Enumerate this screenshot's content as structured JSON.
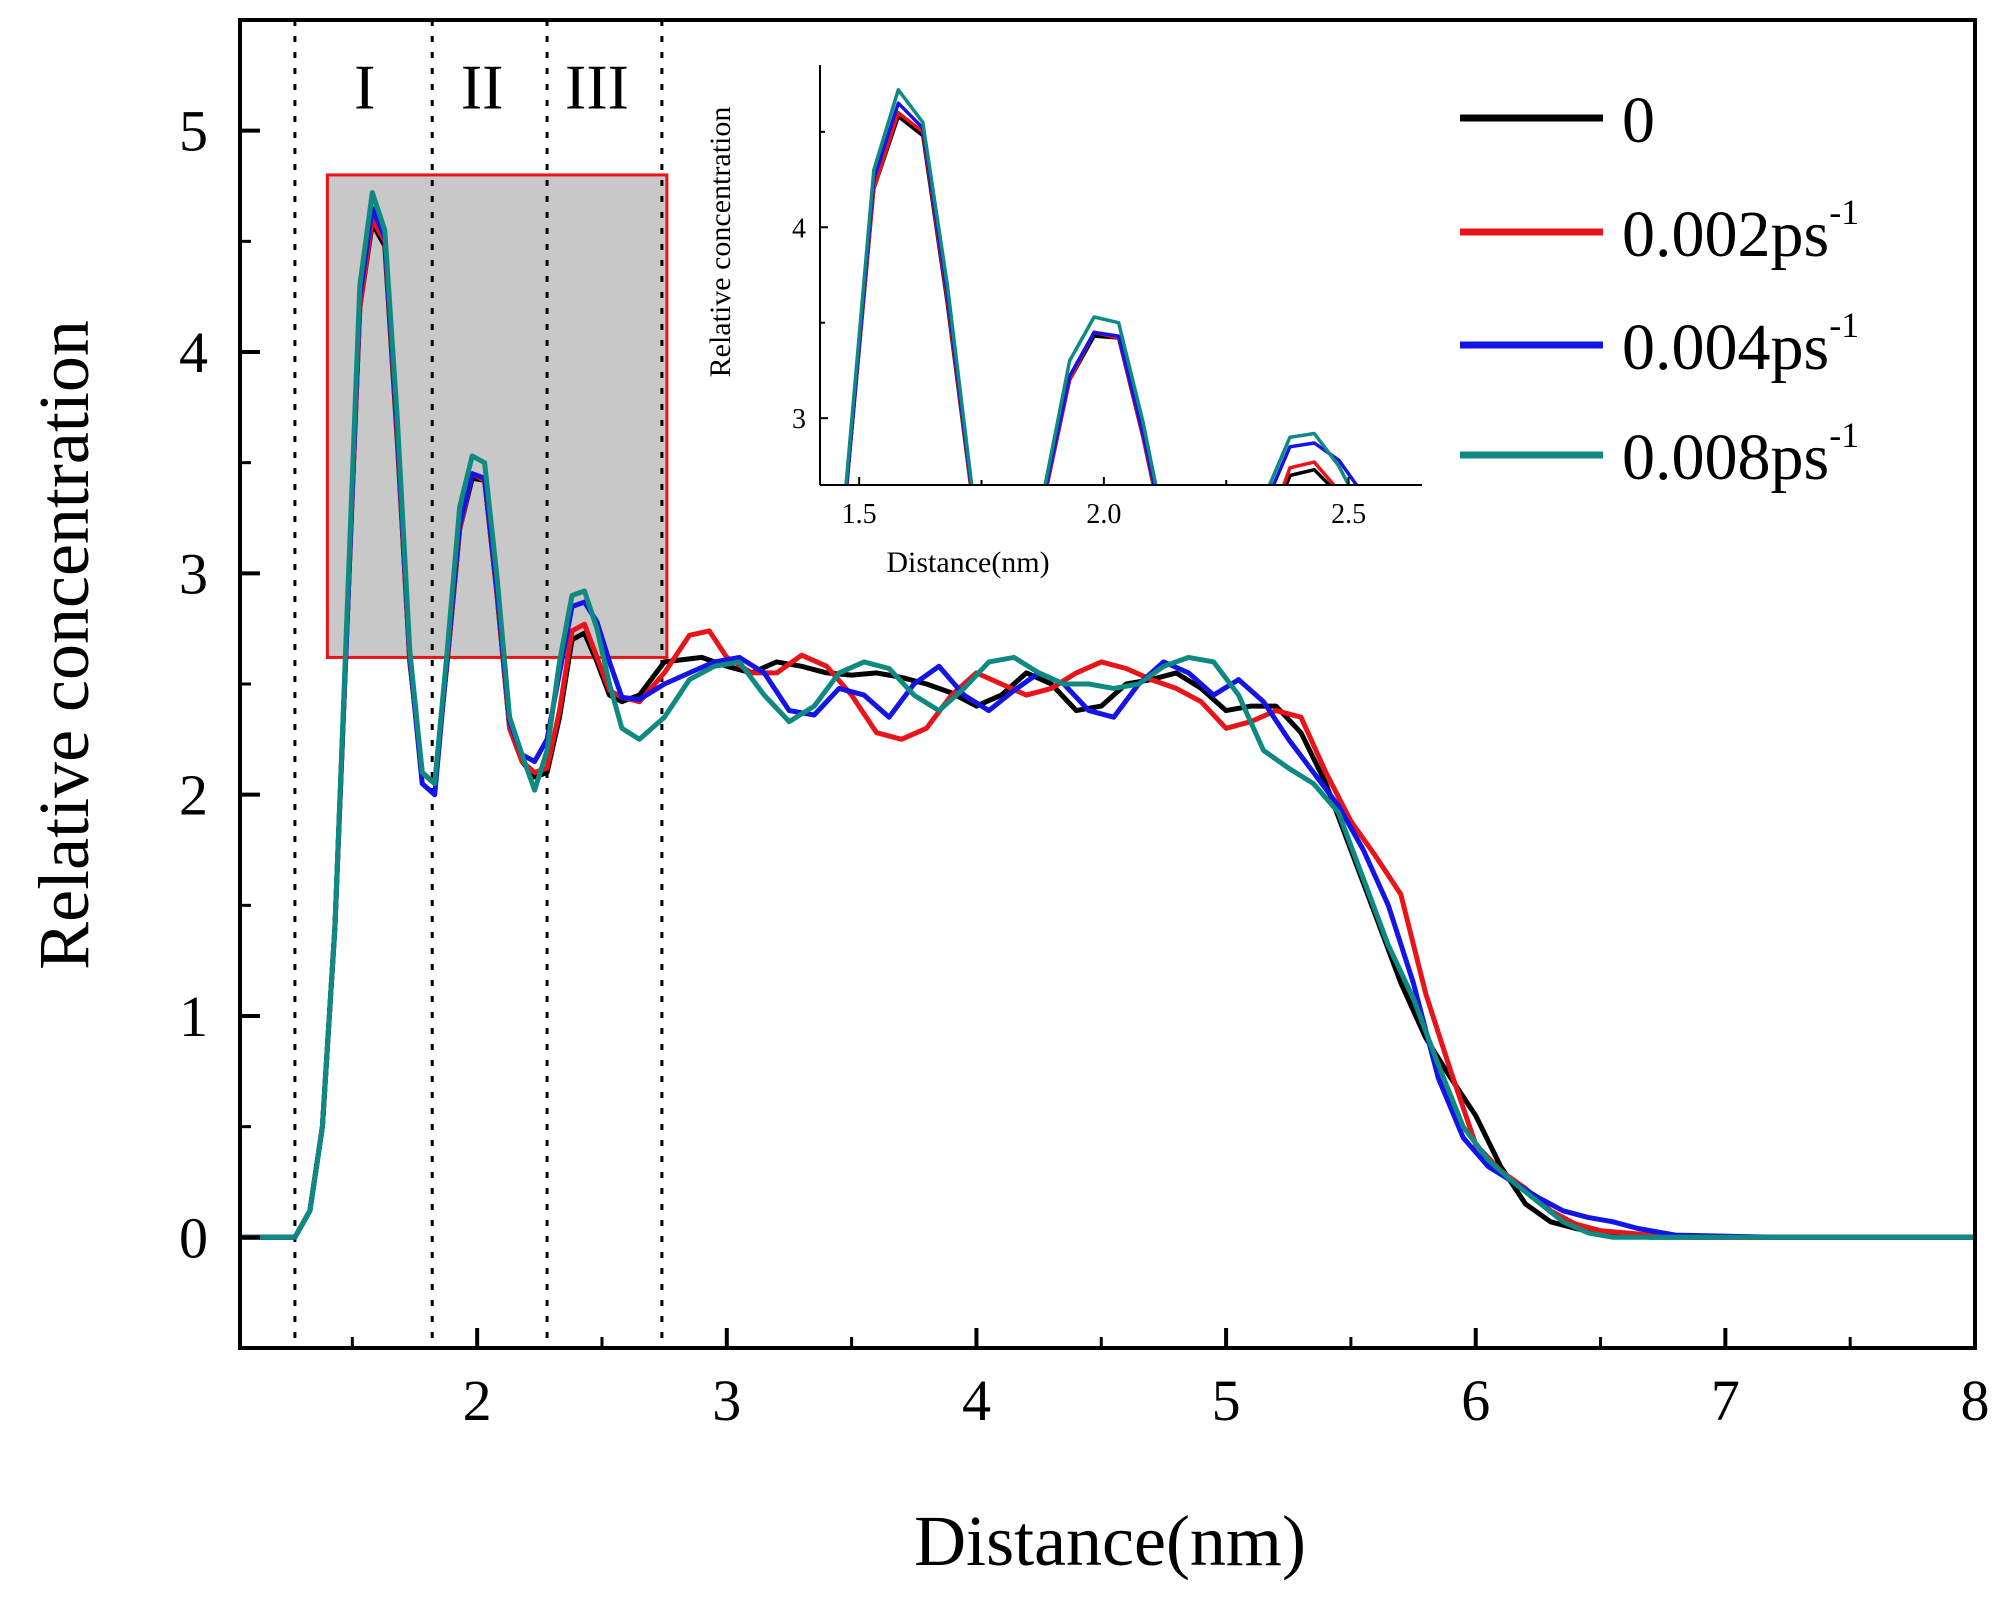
{
  "chart_data": {
    "type": "line",
    "title": "",
    "xlabel": "Distance(nm)",
    "ylabel": "Relative concentration",
    "xlim": [
      1.05,
      8
    ],
    "ylim": [
      -0.5,
      5.5
    ],
    "x_ticks": [
      "2",
      "3",
      "4",
      "5",
      "6",
      "7",
      "8"
    ],
    "y_ticks": [
      "0",
      "1",
      "2",
      "3",
      "4",
      "5"
    ],
    "grid": false,
    "legend_position": "top-right",
    "colors": {
      "s0": "#000000",
      "s1": "#e8141a",
      "s2": "#1414e6",
      "s3": "#0e8a82",
      "region": "#c8c8c8",
      "region_border": "#e8141a"
    },
    "region_dividers": [
      1.27,
      1.82,
      2.28,
      2.74
    ],
    "region_labels": [
      {
        "text": "I",
        "x": 1.55,
        "y": 5.1
      },
      {
        "text": "II",
        "x": 2.02,
        "y": 5.1
      },
      {
        "text": "III",
        "x": 2.48,
        "y": 5.1
      }
    ],
    "highlight_box": {
      "x0": 1.4,
      "x1": 2.76,
      "y0": 2.62,
      "y1": 4.8
    },
    "series": [
      {
        "name": "0",
        "color": "#000000",
        "x": [
          1.05,
          1.27,
          1.33,
          1.38,
          1.43,
          1.48,
          1.53,
          1.58,
          1.63,
          1.68,
          1.73,
          1.78,
          1.83,
          1.88,
          1.93,
          1.98,
          2.03,
          2.08,
          2.13,
          2.18,
          2.23,
          2.28,
          2.33,
          2.38,
          2.43,
          2.48,
          2.53,
          2.58,
          2.65,
          2.75,
          2.9,
          3.0,
          3.1,
          3.2,
          3.3,
          3.4,
          3.5,
          3.6,
          3.7,
          3.8,
          3.9,
          4.0,
          4.1,
          4.2,
          4.3,
          4.4,
          4.5,
          4.6,
          4.7,
          4.8,
          4.9,
          5.0,
          5.1,
          5.2,
          5.3,
          5.4,
          5.5,
          5.6,
          5.7,
          5.8,
          5.9,
          6.0,
          6.1,
          6.2,
          6.3,
          6.4,
          6.5,
          6.6,
          6.7,
          6.85,
          7.2,
          8.0
        ],
        "y": [
          0,
          0,
          0.12,
          0.5,
          1.4,
          2.8,
          4.2,
          4.58,
          4.48,
          3.6,
          2.6,
          2.1,
          2.05,
          2.6,
          3.2,
          3.43,
          3.42,
          2.9,
          2.3,
          2.15,
          2.08,
          2.1,
          2.35,
          2.7,
          2.73,
          2.6,
          2.45,
          2.42,
          2.45,
          2.6,
          2.62,
          2.58,
          2.55,
          2.6,
          2.58,
          2.55,
          2.54,
          2.55,
          2.53,
          2.5,
          2.46,
          2.4,
          2.45,
          2.55,
          2.5,
          2.38,
          2.4,
          2.5,
          2.52,
          2.55,
          2.48,
          2.38,
          2.4,
          2.4,
          2.28,
          2.05,
          1.75,
          1.45,
          1.15,
          0.9,
          0.72,
          0.55,
          0.32,
          0.15,
          0.07,
          0.04,
          0.02,
          0.01,
          0,
          0,
          0,
          0
        ]
      },
      {
        "name": "0.002ps-1",
        "color": "#e8141a",
        "x": [
          1.05,
          1.27,
          1.33,
          1.38,
          1.43,
          1.48,
          1.53,
          1.58,
          1.63,
          1.68,
          1.73,
          1.78,
          1.83,
          1.88,
          1.93,
          1.98,
          2.03,
          2.08,
          2.13,
          2.18,
          2.23,
          2.28,
          2.33,
          2.38,
          2.43,
          2.48,
          2.53,
          2.58,
          2.65,
          2.75,
          2.85,
          2.93,
          3.0,
          3.1,
          3.2,
          3.3,
          3.4,
          3.5,
          3.6,
          3.7,
          3.8,
          3.9,
          4.0,
          4.1,
          4.2,
          4.3,
          4.4,
          4.5,
          4.6,
          4.7,
          4.8,
          4.9,
          5.0,
          5.1,
          5.2,
          5.3,
          5.4,
          5.5,
          5.6,
          5.7,
          5.8,
          5.9,
          6.0,
          6.1,
          6.2,
          6.3,
          6.4,
          6.5,
          6.6,
          6.7,
          6.85,
          7.2,
          8.0
        ],
        "y": [
          0,
          0,
          0.12,
          0.5,
          1.4,
          2.8,
          4.2,
          4.6,
          4.5,
          3.62,
          2.6,
          2.1,
          2.05,
          2.6,
          3.2,
          3.45,
          3.42,
          2.9,
          2.3,
          2.15,
          2.1,
          2.12,
          2.38,
          2.74,
          2.77,
          2.62,
          2.47,
          2.44,
          2.42,
          2.55,
          2.72,
          2.74,
          2.62,
          2.55,
          2.55,
          2.63,
          2.58,
          2.45,
          2.28,
          2.25,
          2.3,
          2.45,
          2.55,
          2.5,
          2.45,
          2.48,
          2.55,
          2.6,
          2.57,
          2.52,
          2.48,
          2.42,
          2.3,
          2.33,
          2.38,
          2.35,
          2.1,
          1.88,
          1.72,
          1.55,
          1.1,
          0.75,
          0.42,
          0.3,
          0.22,
          0.12,
          0.06,
          0.03,
          0.02,
          0.01,
          0,
          0,
          0
        ]
      },
      {
        "name": "0.004ps-1",
        "color": "#1414e6",
        "x": [
          1.05,
          1.27,
          1.33,
          1.38,
          1.43,
          1.48,
          1.53,
          1.58,
          1.63,
          1.68,
          1.73,
          1.78,
          1.83,
          1.88,
          1.93,
          1.98,
          2.03,
          2.08,
          2.13,
          2.18,
          2.23,
          2.28,
          2.33,
          2.38,
          2.43,
          2.48,
          2.53,
          2.58,
          2.65,
          2.75,
          2.85,
          2.95,
          3.05,
          3.15,
          3.25,
          3.35,
          3.45,
          3.55,
          3.65,
          3.75,
          3.85,
          3.95,
          4.05,
          4.15,
          4.25,
          4.35,
          4.45,
          4.55,
          4.65,
          4.75,
          4.85,
          4.95,
          5.05,
          5.15,
          5.25,
          5.35,
          5.45,
          5.55,
          5.65,
          5.75,
          5.85,
          5.95,
          6.05,
          6.15,
          6.25,
          6.35,
          6.45,
          6.55,
          6.65,
          6.8,
          7.2,
          8.0
        ],
        "y": [
          0,
          0,
          0.12,
          0.5,
          1.4,
          2.8,
          4.25,
          4.65,
          4.52,
          3.65,
          2.62,
          2.05,
          2.0,
          2.62,
          3.22,
          3.45,
          3.43,
          2.92,
          2.33,
          2.18,
          2.15,
          2.25,
          2.55,
          2.85,
          2.87,
          2.78,
          2.6,
          2.44,
          2.43,
          2.5,
          2.55,
          2.6,
          2.62,
          2.55,
          2.38,
          2.36,
          2.48,
          2.45,
          2.35,
          2.5,
          2.58,
          2.45,
          2.38,
          2.47,
          2.55,
          2.5,
          2.38,
          2.35,
          2.5,
          2.6,
          2.55,
          2.45,
          2.52,
          2.42,
          2.25,
          2.1,
          1.95,
          1.75,
          1.5,
          1.15,
          0.72,
          0.45,
          0.32,
          0.25,
          0.18,
          0.12,
          0.09,
          0.07,
          0.04,
          0.01,
          0,
          0
        ]
      },
      {
        "name": "0.008ps-1",
        "color": "#0e8a82",
        "x": [
          1.05,
          1.27,
          1.33,
          1.38,
          1.43,
          1.48,
          1.53,
          1.58,
          1.63,
          1.68,
          1.73,
          1.78,
          1.83,
          1.88,
          1.93,
          1.98,
          2.03,
          2.08,
          2.13,
          2.18,
          2.23,
          2.28,
          2.33,
          2.38,
          2.43,
          2.48,
          2.53,
          2.58,
          2.65,
          2.75,
          2.85,
          2.95,
          3.05,
          3.15,
          3.25,
          3.35,
          3.45,
          3.55,
          3.65,
          3.75,
          3.85,
          3.95,
          4.05,
          4.15,
          4.25,
          4.35,
          4.45,
          4.55,
          4.65,
          4.75,
          4.85,
          4.95,
          5.05,
          5.15,
          5.25,
          5.35,
          5.45,
          5.55,
          5.65,
          5.75,
          5.85,
          5.95,
          6.05,
          6.15,
          6.25,
          6.35,
          6.45,
          6.55,
          6.65,
          6.8,
          7.2,
          8.0
        ],
        "y": [
          0,
          0,
          0.12,
          0.5,
          1.4,
          2.85,
          4.3,
          4.72,
          4.55,
          3.7,
          2.65,
          2.1,
          2.05,
          2.65,
          3.3,
          3.53,
          3.5,
          2.98,
          2.35,
          2.18,
          2.02,
          2.2,
          2.6,
          2.9,
          2.92,
          2.75,
          2.5,
          2.3,
          2.25,
          2.35,
          2.52,
          2.58,
          2.6,
          2.45,
          2.33,
          2.4,
          2.55,
          2.6,
          2.57,
          2.45,
          2.38,
          2.48,
          2.6,
          2.62,
          2.55,
          2.5,
          2.5,
          2.48,
          2.5,
          2.58,
          2.62,
          2.6,
          2.45,
          2.2,
          2.12,
          2.05,
          1.92,
          1.62,
          1.32,
          1.08,
          0.78,
          0.5,
          0.35,
          0.25,
          0.16,
          0.07,
          0.02,
          0,
          0,
          0,
          0,
          0
        ]
      }
    ],
    "legend": [
      {
        "label": "0",
        "sup": "",
        "color": "#000000"
      },
      {
        "label": "0.002ps",
        "sup": "-1",
        "color": "#e8141a"
      },
      {
        "label": "0.004ps",
        "sup": "-1",
        "color": "#1414e6"
      },
      {
        "label": "0.008ps",
        "sup": "-1",
        "color": "#0e8a82"
      }
    ],
    "inset": {
      "xlabel": "Distance(nm)",
      "ylabel": "Relative concentration",
      "xlim": [
        1.42,
        2.65
      ],
      "ylim": [
        2.65,
        4.85
      ],
      "x_ticks": [
        "1.5",
        "2.0",
        "2.5"
      ],
      "y_ticks": [
        "3",
        "4"
      ]
    }
  }
}
